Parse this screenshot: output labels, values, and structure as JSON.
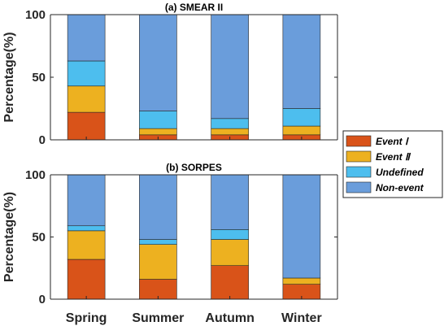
{
  "chart_data": [
    {
      "type": "bar",
      "stacked": true,
      "title": "(a) SMEAR II",
      "ylabel": "Percentage(%)",
      "xlabel": "",
      "ylim": [
        0,
        100
      ],
      "yticks": [
        "0",
        "50",
        "100"
      ],
      "categories": [
        "Spring",
        "Summer",
        "Autumn",
        "Winter"
      ],
      "series": [
        {
          "name": "Event  Ⅰ",
          "color": "#d95319",
          "values": [
            22,
            4,
            4,
            4
          ]
        },
        {
          "name": "Event  Ⅱ",
          "color": "#edb120",
          "values": [
            21,
            5,
            5,
            7
          ]
        },
        {
          "name": "Undefined",
          "color": "#4dbeee",
          "values": [
            20,
            14,
            8,
            14
          ]
        },
        {
          "name": "Non-event",
          "color": "#6a9ddb",
          "values": [
            37,
            77,
            83,
            75
          ]
        }
      ],
      "show_category_labels": false
    },
    {
      "type": "bar",
      "stacked": true,
      "title": "(b) SORPES",
      "ylabel": "Percentage(%)",
      "xlabel": "",
      "ylim": [
        0,
        100
      ],
      "yticks": [
        "0",
        "50",
        "100"
      ],
      "categories": [
        "Spring",
        "Summer",
        "Autumn",
        "Winter"
      ],
      "series": [
        {
          "name": "Event  Ⅰ",
          "color": "#d95319",
          "values": [
            32,
            16,
            27,
            12
          ]
        },
        {
          "name": "Event  Ⅱ",
          "color": "#edb120",
          "values": [
            23,
            28,
            21,
            5
          ]
        },
        {
          "name": "Undefined",
          "color": "#4dbeee",
          "values": [
            4,
            4,
            8,
            0
          ]
        },
        {
          "name": "Non-event",
          "color": "#6a9ddb",
          "values": [
            41,
            52,
            44,
            83
          ]
        }
      ],
      "show_category_labels": true
    }
  ],
  "legend": {
    "placement": "right-middle",
    "entries": [
      {
        "name": "Event  Ⅰ",
        "color": "#d95319"
      },
      {
        "name": "Event  Ⅱ",
        "color": "#edb120"
      },
      {
        "name": "Undefined",
        "color": "#4dbeee"
      },
      {
        "name": "Non-event",
        "color": "#6a9ddb"
      }
    ]
  }
}
